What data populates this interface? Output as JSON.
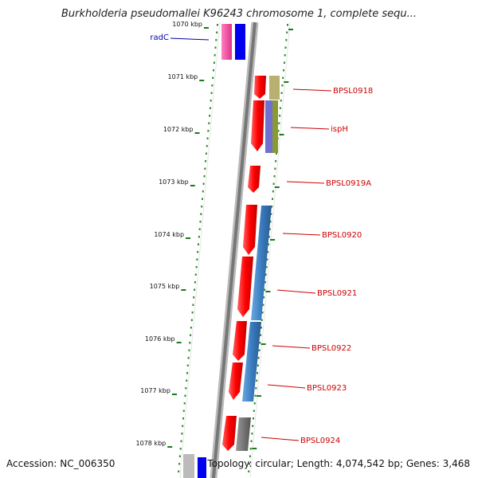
{
  "title": "Burkholderia pseudomallei K96243 chromosome 1, complete sequ...",
  "footer": {
    "accession": "Accession: NC_006350",
    "topology": "Topology: circular; Length: 4,074,542 bp; Genes: 3,468"
  },
  "ticks": [
    "1070 kbp",
    "1071 kbp",
    "1072 kbp",
    "1073 kbp",
    "1074 kbp",
    "1075 kbp",
    "1076 kbp",
    "1077 kbp",
    "1078 kbp"
  ],
  "genes": [
    {
      "label": "radC",
      "color": "#0000aa"
    },
    {
      "label": "BPSL0918",
      "color": "#cc0000"
    },
    {
      "label": "ispH",
      "color": "#cc0000"
    },
    {
      "label": "BPSL0919A",
      "color": "#cc0000"
    },
    {
      "label": "BPSL0920",
      "color": "#cc0000"
    },
    {
      "label": "BPSL0921",
      "color": "#cc0000"
    },
    {
      "label": "BPSL0922",
      "color": "#cc0000"
    },
    {
      "label": "BPSL0923",
      "color": "#cc0000"
    },
    {
      "label": "BPSL0924",
      "color": "#cc0000"
    }
  ]
}
